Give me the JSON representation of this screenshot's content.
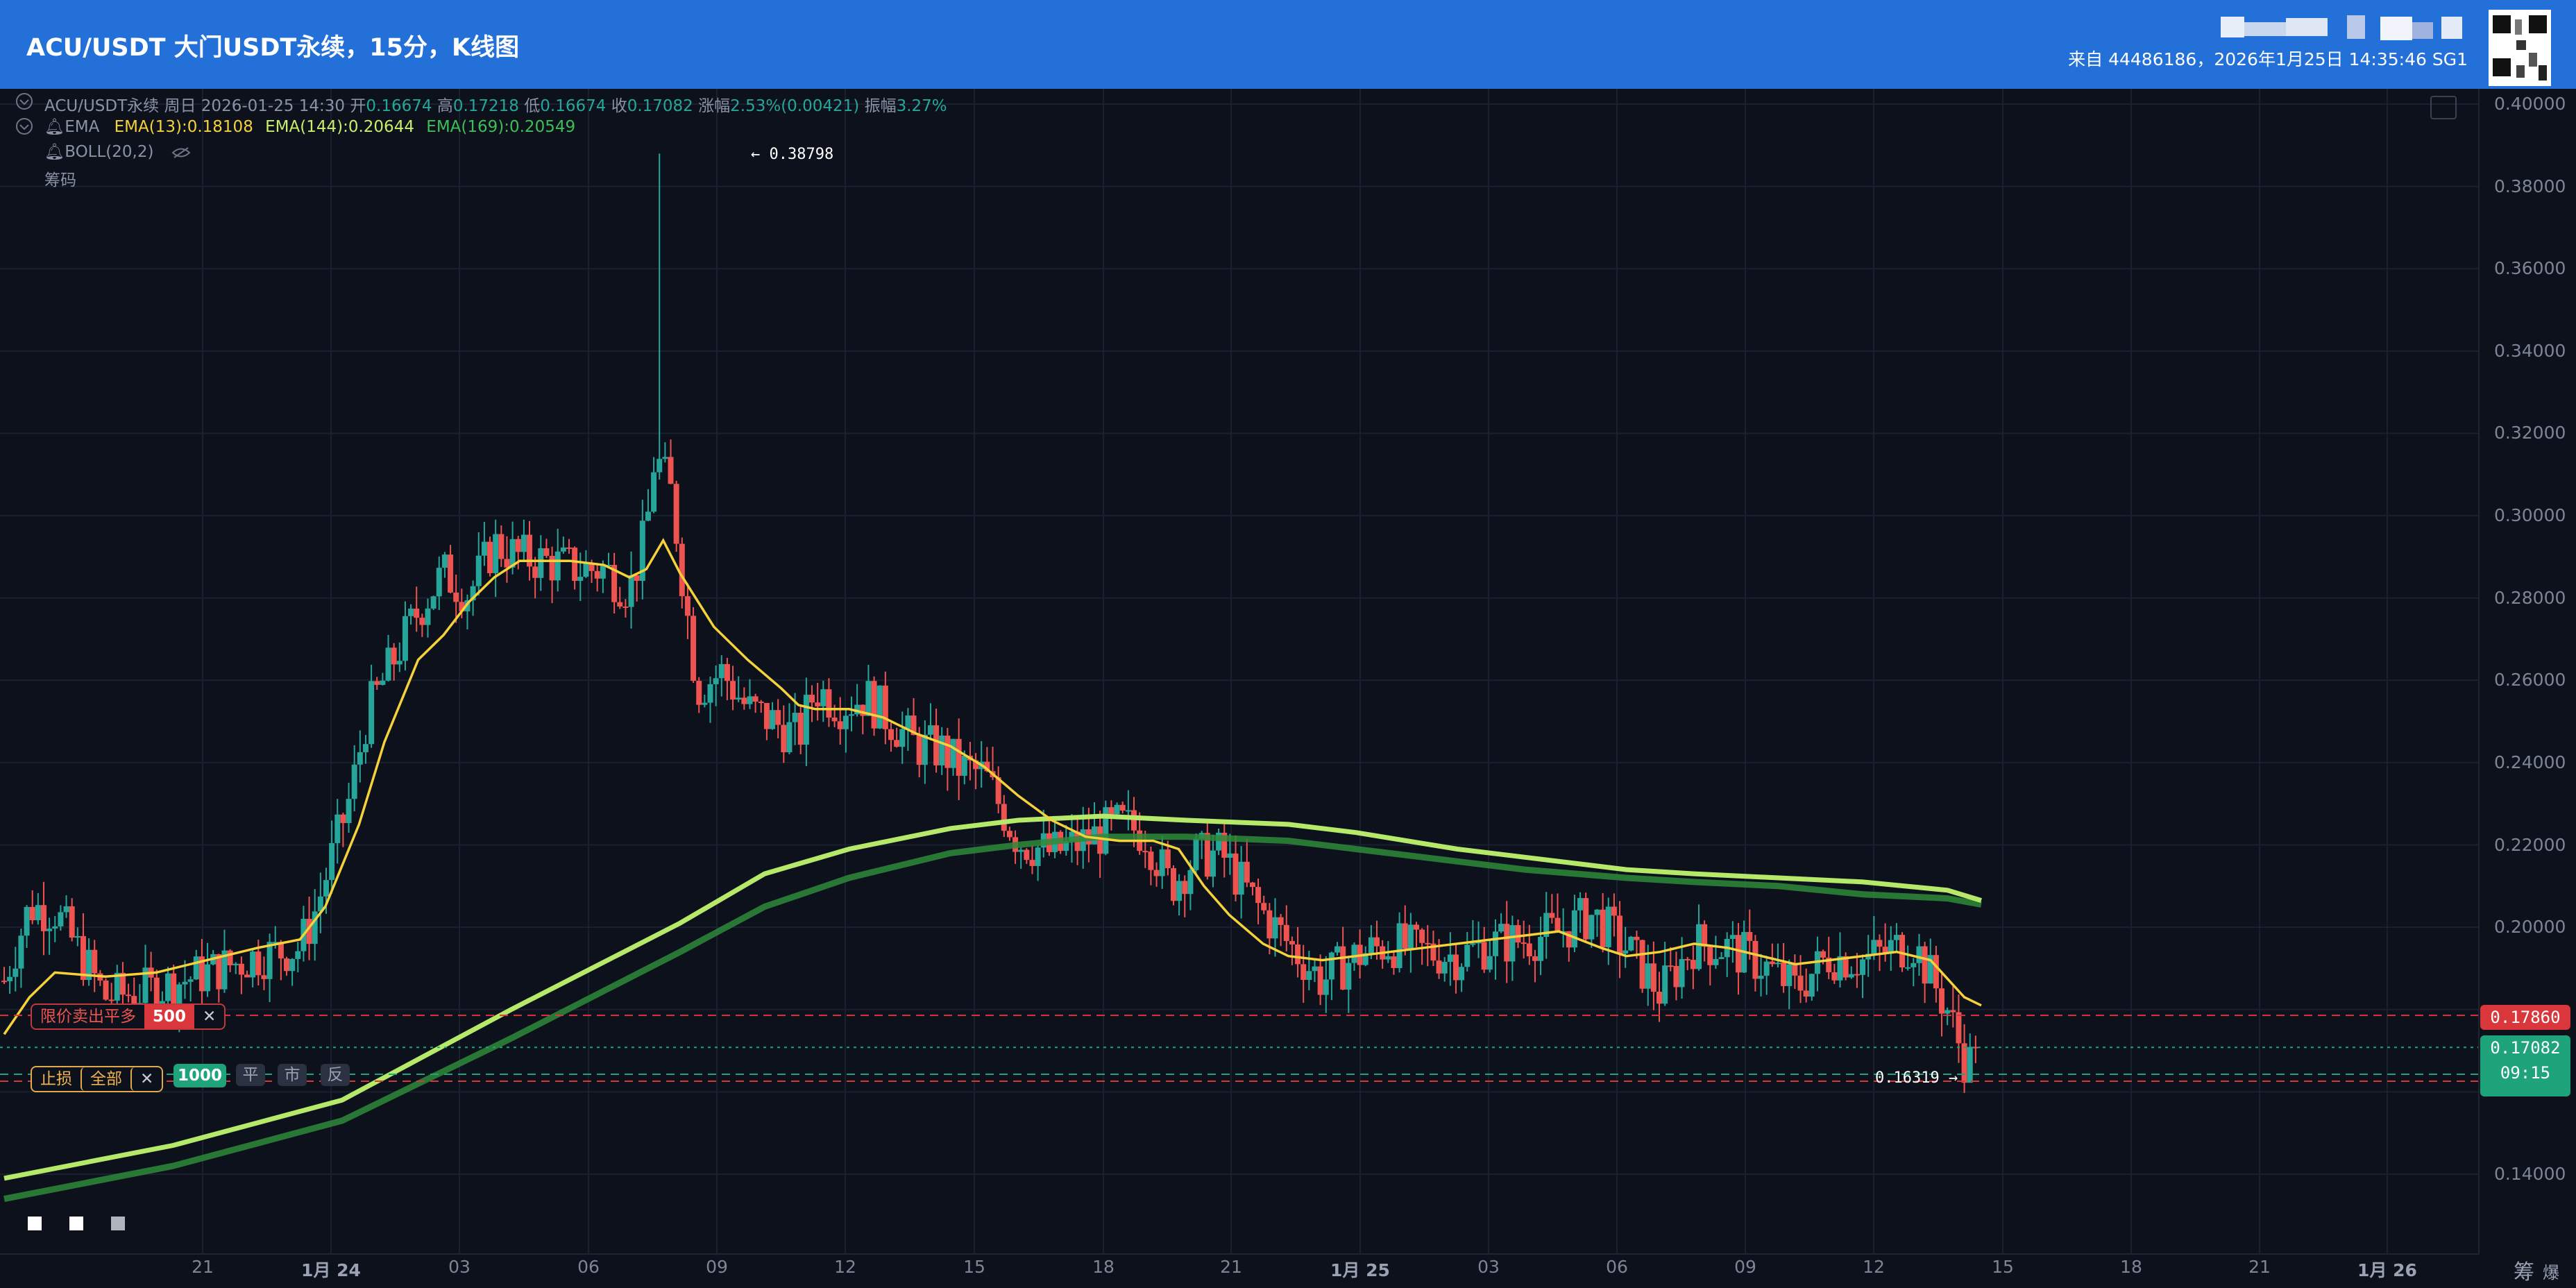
{
  "header": {
    "title": "ACU/USDT 大门USDT永续，15分，K线图",
    "source": "来自 44486186，2026年1月25日 14:35:46 SG1"
  },
  "ohlc_legend": {
    "symbol": "ACU/USDT永续",
    "interval": "周日",
    "datetime": "2026-01-25 14:30",
    "open_label": "开",
    "open": "0.16674",
    "high_label": "高",
    "high": "0.17218",
    "low_label": "低",
    "low": "0.16674",
    "close_label": "收",
    "close": "0.17082",
    "change_label": "涨幅",
    "change": "2.53%(0.00421)",
    "amp_label": "振幅",
    "amp": "3.27%"
  },
  "indicators": {
    "ema_name": "EMA",
    "ema13": "EMA(13):0.18108",
    "ema144": "EMA(144):0.20644",
    "ema169": "EMA(169):0.20549",
    "boll": "BOLL(20,2)",
    "chips": "筹码"
  },
  "price_axis": {
    "labels": [
      "0.40000",
      "0.38000",
      "0.36000",
      "0.34000",
      "0.32000",
      "0.30000",
      "0.28000",
      "0.26000",
      "0.24000",
      "0.22000",
      "0.20000",
      "0.14000"
    ],
    "tag_order": "0.17860",
    "tag_last": "0.17082",
    "tag_countdown": "09:15"
  },
  "time_axis": {
    "labels": [
      "21",
      "1月 24",
      "03",
      "06",
      "09",
      "12",
      "15",
      "18",
      "21",
      "1月 25",
      "03",
      "06",
      "09",
      "12",
      "15",
      "18",
      "21",
      "1月 26"
    ]
  },
  "orders": {
    "limit_label": "限价卖出平多",
    "limit_qty": "500",
    "stop_label": "止损",
    "stop_all": "全部",
    "qty2": "1000",
    "btn_close": "平",
    "btn_market": "市",
    "btn_reverse": "反"
  },
  "annotations": {
    "high": "0.38798",
    "low": "0.16319"
  },
  "corner": {
    "chips": "筹",
    "burst": "爆"
  },
  "colors": {
    "header_bg": "#2371d8",
    "chart_bg": "#0c111c",
    "up": "#26a69a",
    "down": "#ef5350",
    "ema13": "#f5d23a",
    "ema144": "#c7ef6a",
    "ema169": "#3ebf55"
  },
  "chart_data": {
    "type": "candlestick",
    "series_summary": {
      "high_marked": 0.38798,
      "low_marked": 0.16319,
      "last": 0.17082,
      "order_line": 0.1786
    },
    "ylim": [
      0.135,
      0.402
    ],
    "close_path": [
      [
        0,
        0.187
      ],
      [
        15,
        0.205
      ],
      [
        30,
        0.204
      ],
      [
        60,
        0.183
      ],
      [
        90,
        0.185
      ],
      [
        120,
        0.189
      ],
      [
        150,
        0.193
      ],
      [
        175,
        0.195
      ],
      [
        185,
        0.205
      ],
      [
        205,
        0.232
      ],
      [
        215,
        0.252
      ],
      [
        228,
        0.263
      ],
      [
        245,
        0.277
      ],
      [
        260,
        0.286
      ],
      [
        275,
        0.281
      ],
      [
        290,
        0.293
      ],
      [
        305,
        0.29
      ],
      [
        320,
        0.289
      ],
      [
        340,
        0.287
      ],
      [
        355,
        0.287
      ],
      [
        370,
        0.282
      ],
      [
        380,
        0.296
      ],
      [
        385,
        0.315
      ],
      [
        395,
        0.305
      ],
      [
        410,
        0.258
      ],
      [
        425,
        0.262
      ],
      [
        440,
        0.253
      ],
      [
        455,
        0.25
      ],
      [
        470,
        0.246
      ],
      [
        480,
        0.258
      ],
      [
        495,
        0.254
      ],
      [
        510,
        0.256
      ],
      [
        525,
        0.25
      ],
      [
        540,
        0.244
      ],
      [
        555,
        0.243
      ],
      [
        565,
        0.239
      ],
      [
        580,
        0.237
      ],
      [
        590,
        0.229
      ],
      [
        600,
        0.221
      ],
      [
        620,
        0.218
      ],
      [
        640,
        0.221
      ],
      [
        660,
        0.225
      ],
      [
        675,
        0.223
      ],
      [
        690,
        0.21
      ],
      [
        705,
        0.217
      ],
      [
        720,
        0.218
      ],
      [
        740,
        0.206
      ],
      [
        760,
        0.196
      ],
      [
        780,
        0.187
      ],
      [
        800,
        0.193
      ],
      [
        820,
        0.196
      ],
      [
        840,
        0.194
      ],
      [
        860,
        0.193
      ],
      [
        880,
        0.196
      ],
      [
        900,
        0.197
      ],
      [
        920,
        0.199
      ],
      [
        940,
        0.203
      ],
      [
        960,
        0.195
      ],
      [
        980,
        0.184
      ],
      [
        1000,
        0.196
      ],
      [
        1020,
        0.195
      ],
      [
        1040,
        0.191
      ],
      [
        1060,
        0.185
      ],
      [
        1080,
        0.193
      ],
      [
        1100,
        0.192
      ],
      [
        1120,
        0.195
      ],
      [
        1130,
        0.196
      ],
      [
        1140,
        0.188
      ],
      [
        1150,
        0.18
      ],
      [
        1160,
        0.168
      ],
      [
        1165,
        0.167
      ],
      [
        1170,
        0.171
      ]
    ],
    "ema13_path": [
      [
        0,
        0.174
      ],
      [
        15,
        0.183
      ],
      [
        30,
        0.189
      ],
      [
        60,
        0.188
      ],
      [
        90,
        0.189
      ],
      [
        120,
        0.192
      ],
      [
        150,
        0.195
      ],
      [
        175,
        0.197
      ],
      [
        190,
        0.205
      ],
      [
        210,
        0.225
      ],
      [
        225,
        0.245
      ],
      [
        245,
        0.265
      ],
      [
        260,
        0.271
      ],
      [
        275,
        0.279
      ],
      [
        290,
        0.285
      ],
      [
        305,
        0.289
      ],
      [
        320,
        0.289
      ],
      [
        335,
        0.289
      ],
      [
        355,
        0.288
      ],
      [
        370,
        0.285
      ],
      [
        380,
        0.287
      ],
      [
        390,
        0.294
      ],
      [
        400,
        0.286
      ],
      [
        420,
        0.273
      ],
      [
        440,
        0.265
      ],
      [
        460,
        0.258
      ],
      [
        470,
        0.254
      ],
      [
        480,
        0.253
      ],
      [
        500,
        0.253
      ],
      [
        520,
        0.251
      ],
      [
        540,
        0.247
      ],
      [
        560,
        0.244
      ],
      [
        580,
        0.239
      ],
      [
        600,
        0.232
      ],
      [
        620,
        0.226
      ],
      [
        640,
        0.222
      ],
      [
        660,
        0.221
      ],
      [
        680,
        0.221
      ],
      [
        695,
        0.219
      ],
      [
        710,
        0.21
      ],
      [
        725,
        0.203
      ],
      [
        745,
        0.196
      ],
      [
        760,
        0.193
      ],
      [
        780,
        0.192
      ],
      [
        800,
        0.193
      ],
      [
        820,
        0.194
      ],
      [
        840,
        0.195
      ],
      [
        860,
        0.196
      ],
      [
        880,
        0.197
      ],
      [
        900,
        0.198
      ],
      [
        920,
        0.199
      ],
      [
        945,
        0.195
      ],
      [
        960,
        0.193
      ],
      [
        980,
        0.194
      ],
      [
        1000,
        0.196
      ],
      [
        1020,
        0.195
      ],
      [
        1040,
        0.193
      ],
      [
        1060,
        0.191
      ],
      [
        1080,
        0.192
      ],
      [
        1100,
        0.193
      ],
      [
        1120,
        0.194
      ],
      [
        1140,
        0.192
      ],
      [
        1160,
        0.183
      ],
      [
        1170,
        0.181
      ]
    ],
    "ema144_path": [
      [
        0,
        0.139
      ],
      [
        100,
        0.147
      ],
      [
        200,
        0.158
      ],
      [
        300,
        0.18
      ],
      [
        400,
        0.201
      ],
      [
        450,
        0.213
      ],
      [
        500,
        0.219
      ],
      [
        560,
        0.224
      ],
      [
        600,
        0.226
      ],
      [
        650,
        0.227
      ],
      [
        700,
        0.226
      ],
      [
        760,
        0.225
      ],
      [
        800,
        0.223
      ],
      [
        860,
        0.219
      ],
      [
        900,
        0.217
      ],
      [
        960,
        0.214
      ],
      [
        1000,
        0.213
      ],
      [
        1050,
        0.212
      ],
      [
        1100,
        0.211
      ],
      [
        1150,
        0.209
      ],
      [
        1170,
        0.2065
      ]
    ],
    "ema169_path": [
      [
        0,
        0.134
      ],
      [
        100,
        0.142
      ],
      [
        200,
        0.153
      ],
      [
        300,
        0.173
      ],
      [
        400,
        0.194
      ],
      [
        450,
        0.205
      ],
      [
        500,
        0.212
      ],
      [
        560,
        0.218
      ],
      [
        600,
        0.22
      ],
      [
        650,
        0.222
      ],
      [
        700,
        0.222
      ],
      [
        760,
        0.221
      ],
      [
        800,
        0.219
      ],
      [
        860,
        0.216
      ],
      [
        900,
        0.214
      ],
      [
        960,
        0.212
      ],
      [
        1000,
        0.211
      ],
      [
        1050,
        0.21
      ],
      [
        1100,
        0.208
      ],
      [
        1150,
        0.207
      ],
      [
        1170,
        0.2055
      ]
    ]
  }
}
